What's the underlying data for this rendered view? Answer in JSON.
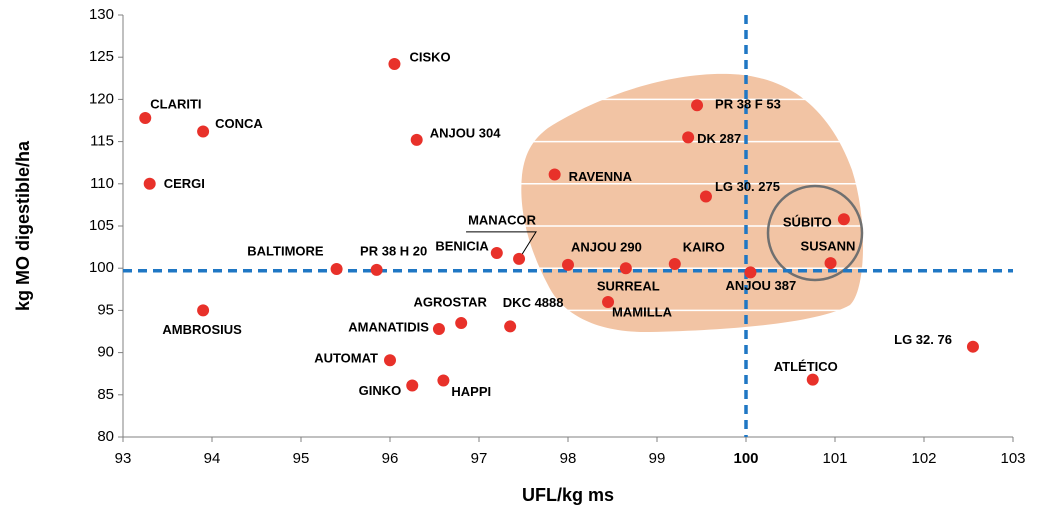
{
  "chart_data": {
    "type": "scatter",
    "xlabel": "UFL/kg ms",
    "ylabel": "kg MO digestible/ha",
    "xlim": [
      93,
      103
    ],
    "xticks": [
      93,
      94,
      95,
      96,
      97,
      98,
      99,
      100,
      101,
      102,
      103
    ],
    "ylim": [
      80,
      130
    ],
    "yticks": [
      80,
      85,
      90,
      95,
      100,
      105,
      110,
      115,
      120,
      125,
      130
    ],
    "grid": true,
    "grid_color": "#ffffff",
    "reference_lines": {
      "x": 100,
      "y": 99.7,
      "color": "#1f77c4"
    },
    "series": [
      {
        "color": "#e8312a",
        "labels": [
          "CLARITI",
          "CONCA",
          "CERGI",
          "AMBROSIUS",
          "CISKO",
          "ANJOU 304",
          "BALTIMORE",
          "PR 38 H 20",
          "BENICIA",
          "MANACOR",
          "AGROSTAR",
          "AMANATIDIS",
          "DKC 4888",
          "AUTOMAT",
          "GINKO",
          "HAPPI",
          "RAVENNA",
          "ANJOU 290",
          "SURREAL",
          "MAMILLA",
          "KAIRO",
          "PR 38 F 53",
          "DK 287",
          "LG 30. 275",
          "ANJOU 387",
          "SÚBITO",
          "SUSANN",
          "ATLÉTICO",
          "LG 32. 76"
        ],
        "x": [
          93.25,
          93.9,
          93.3,
          93.9,
          96.05,
          96.3,
          95.4,
          95.85,
          97.2,
          97.45,
          96.8,
          96.55,
          97.35,
          96.0,
          96.25,
          96.6,
          97.85,
          98.0,
          98.65,
          98.45,
          99.2,
          99.45,
          99.35,
          99.55,
          100.05,
          101.1,
          100.95,
          100.75,
          102.55
        ],
        "values": [
          117.8,
          116.2,
          110.0,
          95.0,
          124.2,
          115.2,
          99.9,
          99.8,
          101.8,
          101.1,
          93.5,
          92.8,
          93.1,
          89.1,
          86.1,
          86.7,
          111.1,
          100.4,
          100.0,
          96.0,
          100.5,
          119.3,
          115.5,
          108.5,
          99.5,
          105.8,
          100.6,
          86.8,
          90.7
        ]
      }
    ]
  }
}
